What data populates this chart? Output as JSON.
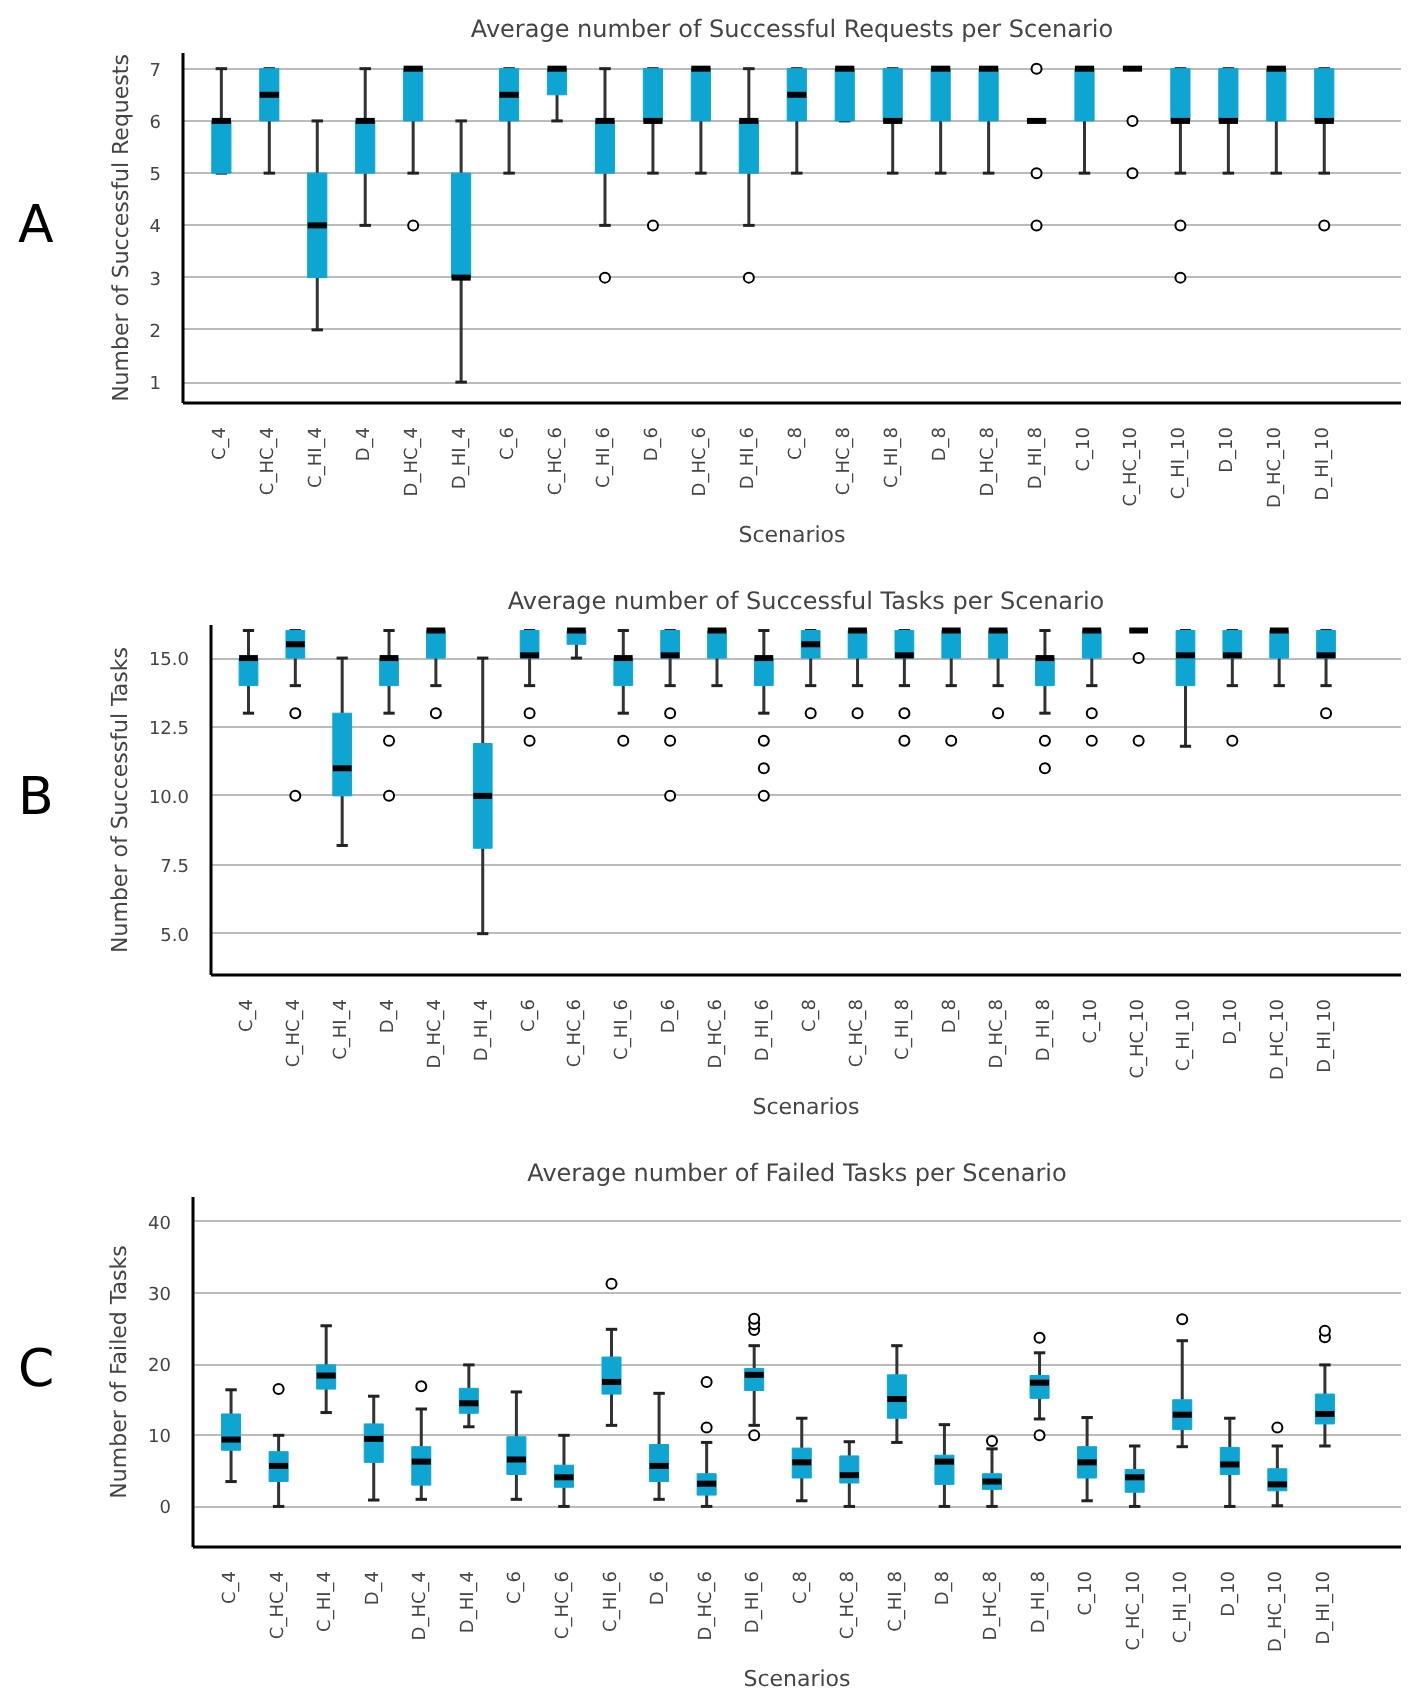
{
  "chart_data": [
    {
      "type": "box",
      "title": "Average number of Successful Requests per Scenario",
      "xlabel": "Scenarios",
      "ylabel": "Number of Successful Requests",
      "annotations": [
        "A"
      ],
      "color": "#0fa5d2",
      "grid": "y",
      "ylim": [
        0.6,
        7.3
      ],
      "yticks": [
        1,
        2,
        3,
        4,
        5,
        6,
        7
      ],
      "categories": [
        "C_4",
        "C_HC_4",
        "C_HI_4",
        "D_4",
        "D_HC_4",
        "D_HI_4",
        "C_6",
        "C_HC_6",
        "C_HI_6",
        "D_6",
        "D_HC_6",
        "D_HI_6",
        "C_8",
        "C_HC_8",
        "C_HI_8",
        "D_8",
        "D_HC_8",
        "D_HI_8",
        "C_10",
        "C_HC_10",
        "C_HI_10",
        "D_10",
        "D_HC_10",
        "D_HI_10"
      ],
      "boxes": [
        {
          "low": 5,
          "q1": 5,
          "median": 6,
          "q3": 6,
          "high": 7
        },
        {
          "low": 5,
          "q1": 6,
          "median": 6.5,
          "q3": 7,
          "high": 7
        },
        {
          "low": 2,
          "q1": 3,
          "median": 4,
          "q3": 5,
          "high": 6
        },
        {
          "low": 4,
          "q1": 5,
          "median": 6,
          "q3": 6,
          "high": 7
        },
        {
          "low": 5,
          "q1": 6,
          "median": 7,
          "q3": 7,
          "high": 7,
          "outliers": [
            4
          ]
        },
        {
          "low": 1,
          "q1": 3,
          "median": 3,
          "q3": 5,
          "high": 6
        },
        {
          "low": 5,
          "q1": 6,
          "median": 6.5,
          "q3": 7,
          "high": 7
        },
        {
          "low": 6,
          "q1": 6.5,
          "median": 7,
          "q3": 7,
          "high": 7
        },
        {
          "low": 4,
          "q1": 5,
          "median": 6,
          "q3": 6,
          "high": 7,
          "outliers": [
            3
          ]
        },
        {
          "low": 5,
          "q1": 6,
          "median": 6,
          "q3": 7,
          "high": 7,
          "outliers": [
            4
          ]
        },
        {
          "low": 5,
          "q1": 6,
          "median": 7,
          "q3": 7,
          "high": 7
        },
        {
          "low": 4,
          "q1": 5,
          "median": 6,
          "q3": 6,
          "high": 7,
          "outliers": [
            3
          ]
        },
        {
          "low": 5,
          "q1": 6,
          "median": 6.5,
          "q3": 7,
          "high": 7
        },
        {
          "low": 6,
          "q1": 6,
          "median": 7,
          "q3": 7,
          "high": 7
        },
        {
          "low": 5,
          "q1": 6,
          "median": 6,
          "q3": 7,
          "high": 7
        },
        {
          "low": 5,
          "q1": 6,
          "median": 7,
          "q3": 7,
          "high": 7
        },
        {
          "low": 5,
          "q1": 6,
          "median": 7,
          "q3": 7,
          "high": 7
        },
        {
          "low": 6,
          "q1": 6,
          "median": 6,
          "q3": 6,
          "high": 6,
          "outliers": [
            7,
            5,
            4
          ]
        },
        {
          "low": 5,
          "q1": 6,
          "median": 7,
          "q3": 7,
          "high": 7
        },
        {
          "low": 7,
          "q1": 7,
          "median": 7,
          "q3": 7,
          "high": 7,
          "outliers": [
            6,
            5
          ]
        },
        {
          "low": 5,
          "q1": 6,
          "median": 6,
          "q3": 7,
          "high": 7,
          "outliers": [
            4,
            3
          ]
        },
        {
          "low": 5,
          "q1": 6,
          "median": 6,
          "q3": 7,
          "high": 7
        },
        {
          "low": 5,
          "q1": 6,
          "median": 7,
          "q3": 7,
          "high": 7
        },
        {
          "low": 5,
          "q1": 6,
          "median": 6,
          "q3": 7,
          "high": 7,
          "outliers": [
            4
          ]
        }
      ]
    },
    {
      "type": "box",
      "title": "Average number of Successful Tasks per Scenario",
      "xlabel": "Scenarios",
      "ylabel": "Number of Successful Tasks",
      "annotations": [
        "B"
      ],
      "color": "#0fa5d2",
      "grid": "y",
      "ylim": [
        3.5,
        16.2
      ],
      "yticks": [
        {
          "value": 5,
          "label": "5.0"
        },
        {
          "value": 7.5,
          "label": "7.5"
        },
        {
          "value": 10,
          "label": "10.0"
        },
        {
          "value": 12.5,
          "label": "12.5"
        },
        {
          "value": 15,
          "label": "15.0"
        }
      ],
      "categories": [
        "C_4",
        "C_HC_4",
        "C_HI_4",
        "D_4",
        "D_HC_4",
        "D_HI_4",
        "C_6",
        "C_HC_6",
        "C_HI_6",
        "D_6",
        "D_HC_6",
        "D_HI_6",
        "C_8",
        "C_HC_8",
        "C_HI_8",
        "D_8",
        "D_HC_8",
        "D_HI_8",
        "C_10",
        "C_HC_10",
        "C_HI_10",
        "D_10",
        "D_HC_10",
        "D_HI_10"
      ],
      "boxes": [
        {
          "low": 13,
          "q1": 14,
          "median": 15,
          "q3": 15,
          "high": 16
        },
        {
          "low": 14,
          "q1": 15,
          "median": 15.5,
          "q3": 16,
          "high": 16,
          "outliers": [
            13,
            10
          ]
        },
        {
          "low": 8.2,
          "q1": 10,
          "median": 11,
          "q3": 13,
          "high": 15
        },
        {
          "low": 13,
          "q1": 14,
          "median": 15,
          "q3": 15,
          "high": 16,
          "outliers": [
            12,
            10
          ]
        },
        {
          "low": 14,
          "q1": 15,
          "median": 16,
          "q3": 16,
          "high": 16,
          "outliers": [
            13
          ]
        },
        {
          "low": 5,
          "q1": 8.1,
          "median": 10,
          "q3": 11.9,
          "high": 15
        },
        {
          "low": 14,
          "q1": 15,
          "median": 15.1,
          "q3": 16,
          "high": 16,
          "outliers": [
            13,
            12
          ]
        },
        {
          "low": 15,
          "q1": 15.5,
          "median": 16,
          "q3": 16,
          "high": 16
        },
        {
          "low": 13,
          "q1": 14,
          "median": 15,
          "q3": 15,
          "high": 16,
          "outliers": [
            12
          ]
        },
        {
          "low": 14,
          "q1": 15,
          "median": 15.1,
          "q3": 16,
          "high": 16,
          "outliers": [
            13,
            12,
            10
          ]
        },
        {
          "low": 14,
          "q1": 15,
          "median": 16,
          "q3": 16,
          "high": 16
        },
        {
          "low": 13,
          "q1": 14,
          "median": 15,
          "q3": 15,
          "high": 16,
          "outliers": [
            12,
            11,
            10
          ]
        },
        {
          "low": 14,
          "q1": 15,
          "median": 15.5,
          "q3": 16,
          "high": 16,
          "outliers": [
            13
          ]
        },
        {
          "low": 14,
          "q1": 15,
          "median": 16,
          "q3": 16,
          "high": 16,
          "outliers": [
            13
          ]
        },
        {
          "low": 14,
          "q1": 15,
          "median": 15.1,
          "q3": 16,
          "high": 16,
          "outliers": [
            13,
            12
          ]
        },
        {
          "low": 14,
          "q1": 15,
          "median": 16,
          "q3": 16,
          "high": 16,
          "outliers": [
            12
          ]
        },
        {
          "low": 14,
          "q1": 15,
          "median": 16,
          "q3": 16,
          "high": 16,
          "outliers": [
            13
          ]
        },
        {
          "low": 13,
          "q1": 14,
          "median": 15,
          "q3": 15,
          "high": 16,
          "outliers": [
            12,
            11
          ]
        },
        {
          "low": 14,
          "q1": 15,
          "median": 16,
          "q3": 16,
          "high": 16,
          "outliers": [
            13,
            12
          ]
        },
        {
          "low": 16,
          "q1": 16,
          "median": 16,
          "q3": 16,
          "high": 16,
          "outliers": [
            15,
            12
          ]
        },
        {
          "low": 11.8,
          "q1": 14,
          "median": 15.1,
          "q3": 16,
          "high": 16
        },
        {
          "low": 14,
          "q1": 15,
          "median": 15.1,
          "q3": 16,
          "high": 16,
          "outliers": [
            12
          ]
        },
        {
          "low": 14,
          "q1": 15,
          "median": 16,
          "q3": 16,
          "high": 16
        },
        {
          "low": 14,
          "q1": 15,
          "median": 15.1,
          "q3": 16,
          "high": 16,
          "outliers": [
            13
          ]
        }
      ]
    },
    {
      "type": "box",
      "title": "Average number of Failed Tasks per Scenario",
      "xlabel": "Scenarios",
      "ylabel": "Number of Failed Tasks",
      "annotations": [
        "C"
      ],
      "color": "#0fa5d2",
      "grid": "y",
      "ylim": [
        -5.7,
        43.5
      ],
      "yticks": [
        0,
        10,
        20,
        30,
        40
      ],
      "categories": [
        "C_4",
        "C_HC_4",
        "C_HI_4",
        "D_4",
        "D_HC_4",
        "D_HI_4",
        "C_6",
        "C_HC_6",
        "C_HI_6",
        "D_6",
        "D_HC_6",
        "D_HI_6",
        "C_8",
        "C_HC_8",
        "C_HI_8",
        "D_8",
        "D_HC_8",
        "D_HI_8",
        "C_10",
        "C_HC_10",
        "C_HI_10",
        "D_10",
        "D_HC_10",
        "D_HI_10"
      ],
      "boxes": [
        {
          "low": 3.5,
          "q1": 7.9,
          "median": 9.4,
          "q3": 13,
          "high": 16.4
        },
        {
          "low": 0,
          "q1": 3.5,
          "median": 5.7,
          "q3": 7.7,
          "high": 10,
          "outliers": [
            16.5
          ]
        },
        {
          "low": 13.2,
          "q1": 16.5,
          "median": 18.4,
          "q3": 19.9,
          "high": 25.4
        },
        {
          "low": 0.9,
          "q1": 6.2,
          "median": 9.5,
          "q3": 11.6,
          "high": 15.5
        },
        {
          "low": 1,
          "q1": 3,
          "median": 6.3,
          "q3": 8.4,
          "high": 13.7,
          "outliers": [
            16.9
          ]
        },
        {
          "low": 11.2,
          "q1": 13.1,
          "median": 14.5,
          "q3": 16.6,
          "high": 19.9
        },
        {
          "low": 1,
          "q1": 4.5,
          "median": 6.6,
          "q3": 9.8,
          "high": 16.1
        },
        {
          "low": 0,
          "q1": 2.7,
          "median": 4.1,
          "q3": 5.8,
          "high": 10
        },
        {
          "low": 11.4,
          "q1": 15.8,
          "median": 17.5,
          "q3": 21,
          "high": 24.9,
          "outliers": [
            31.3
          ]
        },
        {
          "low": 1,
          "q1": 3.5,
          "median": 5.7,
          "q3": 8.7,
          "high": 15.9
        },
        {
          "low": 0,
          "q1": 1.6,
          "median": 3.2,
          "q3": 4.6,
          "high": 9,
          "outliers": [
            11.1,
            17.5
          ]
        },
        {
          "low": 11.4,
          "q1": 16.3,
          "median": 18.5,
          "q3": 19.4,
          "high": 22.6,
          "outliers": [
            10,
            24.8,
            25.6,
            26.4
          ]
        },
        {
          "low": 0.8,
          "q1": 4,
          "median": 6.2,
          "q3": 8.2,
          "high": 12.4
        },
        {
          "low": 0,
          "q1": 3.3,
          "median": 4.4,
          "q3": 7.1,
          "high": 9.1
        },
        {
          "low": 9,
          "q1": 12.4,
          "median": 15.1,
          "q3": 18.5,
          "high": 22.6
        },
        {
          "low": 0,
          "q1": 3.1,
          "median": 6.3,
          "q3": 7.2,
          "high": 11.5
        },
        {
          "low": 0,
          "q1": 2.4,
          "median": 3.5,
          "q3": 4.6,
          "high": 8.1,
          "outliers": [
            9.2
          ]
        },
        {
          "low": 12.3,
          "q1": 15.2,
          "median": 17.4,
          "q3": 18.4,
          "high": 21.6,
          "outliers": [
            10,
            23.7
          ]
        },
        {
          "low": 0.8,
          "q1": 4,
          "median": 6.2,
          "q3": 8.4,
          "high": 12.5
        },
        {
          "low": 0,
          "q1": 2,
          "median": 4.1,
          "q3": 5.2,
          "high": 8.5
        },
        {
          "low": 8.4,
          "q1": 10.8,
          "median": 12.9,
          "q3": 15,
          "high": 23.3,
          "outliers": [
            26.3
          ]
        },
        {
          "low": 0,
          "q1": 4.5,
          "median": 5.9,
          "q3": 8.3,
          "high": 12.4
        },
        {
          "low": 0.1,
          "q1": 2.2,
          "median": 3.1,
          "q3": 5.3,
          "high": 8.5,
          "outliers": [
            11.1
          ]
        },
        {
          "low": 8.5,
          "q1": 11.6,
          "median": 13,
          "q3": 15.8,
          "high": 19.9,
          "outliers": [
            23.8,
            24.7
          ]
        }
      ]
    }
  ]
}
